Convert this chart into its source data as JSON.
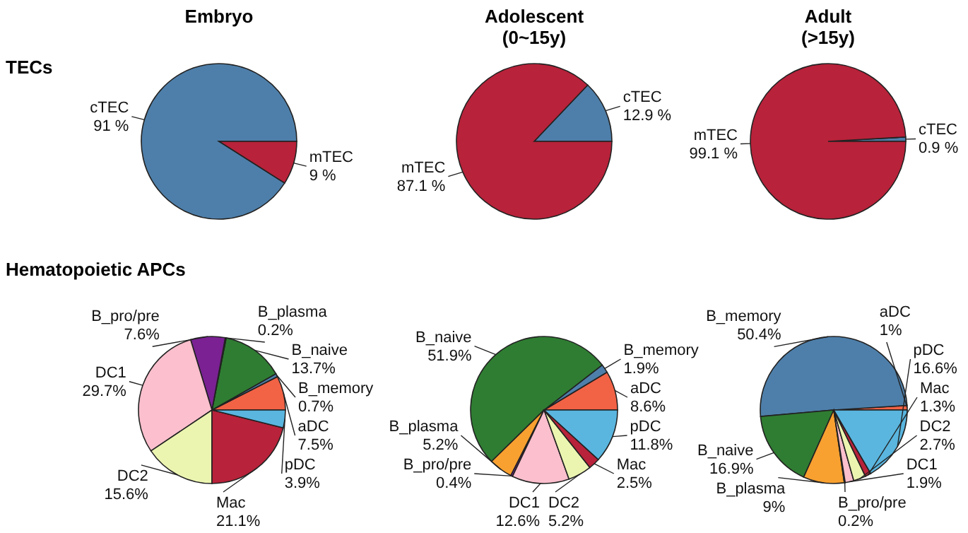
{
  "chart_data": [
    {
      "type": "pie",
      "title": "Embryo",
      "subtitle": "TECs",
      "categories": [
        "cTEC",
        "mTEC"
      ],
      "values": [
        91,
        9
      ],
      "colors": [
        "#4e7faa",
        "#b8223a"
      ],
      "value_labels": [
        "91 %",
        "9 %"
      ]
    },
    {
      "type": "pie",
      "title": "Adolescent\n(0~15y)",
      "categories": [
        "cTEC",
        "mTEC"
      ],
      "values": [
        12.9,
        87.1
      ],
      "colors": [
        "#4e7faa",
        "#b8223a"
      ],
      "value_labels": [
        "12.9 %",
        "87.1 %"
      ]
    },
    {
      "type": "pie",
      "title": "Adult\n(>15y)",
      "categories": [
        "cTEC",
        "mTEC"
      ],
      "values": [
        0.9,
        99.1
      ],
      "colors": [
        "#4e7faa",
        "#b8223a"
      ],
      "value_labels": [
        "0.9 %",
        "99.1 %"
      ]
    },
    {
      "type": "pie",
      "subtitle": "Hematopoietic APCs",
      "categories": [
        "aDC",
        "B_memory",
        "B_naive",
        "B_plasma",
        "B_pro/pre",
        "DC1",
        "DC2",
        "Mac",
        "pDC"
      ],
      "values": [
        7.5,
        0.7,
        13.7,
        0.2,
        7.6,
        29.7,
        15.6,
        21.1,
        3.9
      ],
      "colors": [
        "#f26245",
        "#4e7faa",
        "#2f7d32",
        "#f8a030",
        "#7b2193",
        "#fbbfcd",
        "#ecf5b0",
        "#b8223a",
        "#5ab6df"
      ],
      "value_labels": [
        "7.5%",
        "0.7%",
        "13.7%",
        "0.2%",
        "7.6%",
        "29.7%",
        "15.6%",
        "21.1%",
        "3.9%"
      ]
    },
    {
      "type": "pie",
      "categories": [
        "aDC",
        "B_memory",
        "B_naive",
        "B_plasma",
        "B_pro/pre",
        "DC1",
        "DC2",
        "Mac",
        "pDC"
      ],
      "values": [
        8.6,
        1.9,
        51.9,
        5.2,
        0.4,
        12.6,
        5.2,
        2.5,
        11.8
      ],
      "colors": [
        "#f26245",
        "#4e7faa",
        "#2f7d32",
        "#f8a030",
        "#7b2193",
        "#fbbfcd",
        "#ecf5b0",
        "#b8223a",
        "#5ab6df"
      ],
      "value_labels": [
        "8.6%",
        "1.9%",
        "51.9%",
        "5.2%",
        "0.4%",
        "12.6%",
        "5.2%",
        "2.5%",
        "11.8%"
      ]
    },
    {
      "type": "pie",
      "categories": [
        "aDC",
        "B_memory",
        "B_naive",
        "B_plasma",
        "B_pro/pre",
        "DC1",
        "DC2",
        "Mac",
        "pDC"
      ],
      "values": [
        1,
        50.4,
        16.9,
        9,
        0.2,
        1.9,
        2.7,
        1.3,
        16.6
      ],
      "colors": [
        "#f26245",
        "#4e7faa",
        "#2f7d32",
        "#f8a030",
        "#7b2193",
        "#fbbfcd",
        "#ecf5b0",
        "#b8223a",
        "#5ab6df"
      ],
      "value_labels": [
        "1%",
        "50.4%",
        "16.9%",
        "9%",
        "0.2%",
        "1.9%",
        "2.7%",
        "1.3%",
        "16.6%"
      ]
    }
  ]
}
